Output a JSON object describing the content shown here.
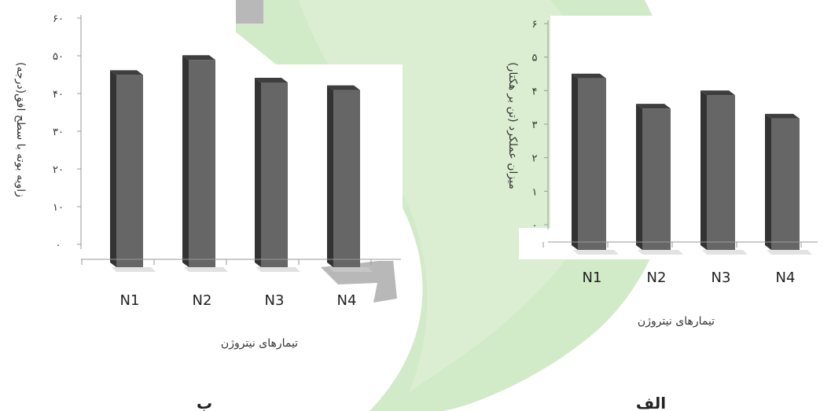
{
  "chart_data": [
    {
      "type": "bar",
      "panel_label": "ب",
      "categories": [
        "N1",
        "N2",
        "N3",
        "N4"
      ],
      "values": [
        47,
        51,
        45,
        43
      ],
      "ylim": [
        0,
        60
      ],
      "yticks": [
        "۰",
        "۱۰",
        "۲۰",
        "۳۰",
        "۴۰",
        "۵۰",
        "۶۰"
      ],
      "xlabel": "تیمارهای نیتروژن",
      "ylabel": "زاویه بوته با سطح افق(درجه)",
      "grid": false,
      "legend": "none"
    },
    {
      "type": "bar",
      "panel_label": "الف",
      "categories": [
        "N1",
        "N2",
        "N3",
        "N4"
      ],
      "values": [
        4.6,
        3.7,
        4.1,
        3.4
      ],
      "ylim": [
        0,
        6
      ],
      "yticks": [
        "۰",
        "۱",
        "۲",
        "۳",
        "۴",
        "۵",
        "۶"
      ],
      "xlabel": "تیمارهای نیتروژن",
      "ylabel": "میزان عملکرد (تن بر هکتار)",
      "grid": false,
      "legend": "none"
    }
  ],
  "colors": {
    "bar_front": "#666666",
    "bar_side": "#333333",
    "bar_top": "#3e3e3e",
    "axis": "#999999",
    "watermark_green": "#c9e6bd",
    "watermark_grey": "#b8b8b8"
  }
}
